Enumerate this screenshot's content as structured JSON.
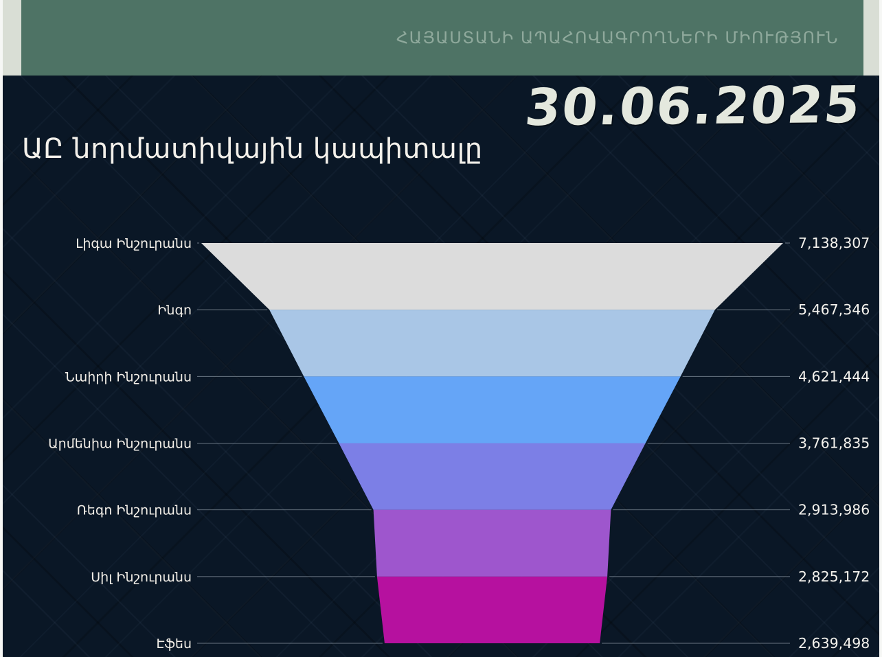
{
  "page": {
    "header": {
      "org_name": "ՀԱՅԱՍՏԱՆԻ ԱՊԱՀՈՎԱԳՐՈՂՆԵՐԻ ՄԻՈՒԹՅՈՒՆ"
    },
    "date": "30.06.2025",
    "title": "ԱԸ նորմատիվային կապիտալը"
  },
  "colors": {
    "background_navy": "#0a1726",
    "header_band_green": "#4e7365",
    "header_strip_sage": "#d9ded5",
    "edge_light": "#f6f7f5",
    "header_text_green": "#8fa99c",
    "date_text": "#e4e8de",
    "title_text": "#f3f0ea",
    "label_text": "#f2eee7",
    "value_text": "#f4f2ed",
    "connector_line": "#8a97a3"
  },
  "chart_data": {
    "type": "funnel",
    "title": "ԱԸ նորմատիվային կապիտալը",
    "orientation": "widest-at-top, descending",
    "legend_position": "none",
    "categories": [
      "Լիգա Ինշուրանս",
      "Ինգո",
      "Նաիրի Ինշուրանս",
      "Արմենիա Ինշուրանս",
      "Ռեգո Ինշուրանս",
      "Սիլ Ինշուրանս",
      "Էֆես"
    ],
    "values": [
      7138307,
      5467346,
      4621444,
      3761835,
      2913986,
      2825172,
      2639498
    ],
    "value_labels": [
      "7,138,307",
      "5,467,346",
      "4,621,444",
      "3,761,835",
      "2,913,986",
      "2,825,172",
      "2,639,498"
    ],
    "segment_colors": [
      "#dcdcdc",
      "#a9c6e6",
      "#65a5f7",
      "#7c7fe6",
      "#9e56cd",
      "#b6119f"
    ],
    "layout_hints": {
      "labels_side": "left",
      "values_side": "right",
      "last_segment_clipped_by_page_bottom": true
    }
  }
}
